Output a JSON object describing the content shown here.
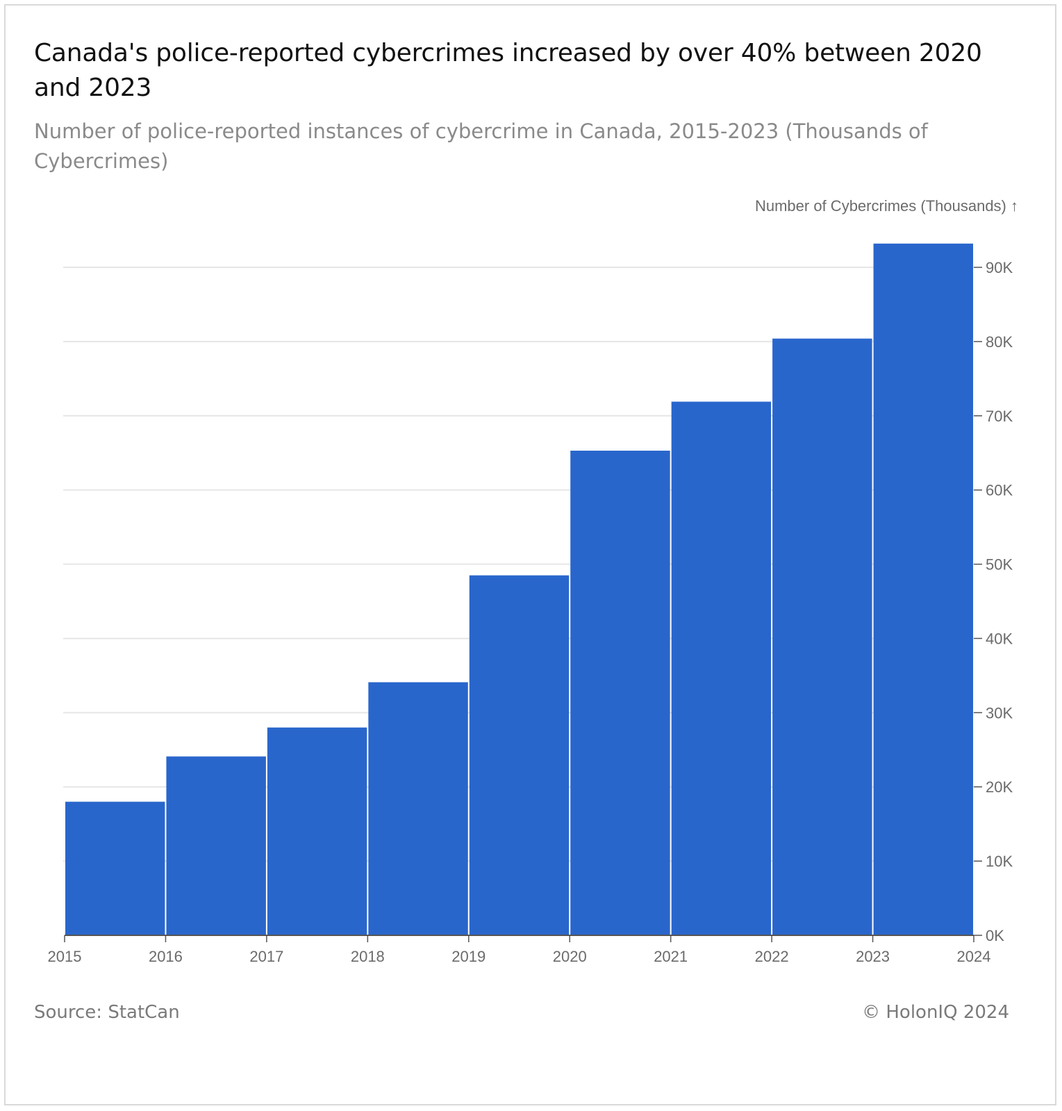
{
  "header": {
    "title": "Canada's police-reported cybercrimes increased by over 40% between 2020 and 2023",
    "subtitle": "Number of police-reported instances of cybercrime in Canada, 2015-2023 (Thousands of Cybercrimes)"
  },
  "footer": {
    "source": "Source: StatCan",
    "copyright": "© HolonIQ 2024"
  },
  "colors": {
    "bar": "#2966cc",
    "grid": "#e6e6e6",
    "axis": "#555555",
    "tick_text": "#6b6b6b"
  },
  "chart_data": {
    "type": "bar",
    "title": "Canada's police-reported cybercrimes increased by over 40% between 2020 and 2023",
    "subtitle": "Number of police-reported instances of cybercrime in Canada, 2015-2023 (Thousands of Cybercrimes)",
    "ylabel": "Number of Cybercrimes (Thousands) ↑",
    "xlabel": "",
    "y_axis_position": "right",
    "grid": true,
    "legend": "none",
    "x_ticks": [
      "2015",
      "2016",
      "2017",
      "2018",
      "2019",
      "2020",
      "2021",
      "2022",
      "2023",
      "2024"
    ],
    "y_ticks": [
      "0K",
      "10K",
      "20K",
      "30K",
      "40K",
      "50K",
      "60K",
      "70K",
      "80K",
      "90K"
    ],
    "ylim": [
      0,
      93000
    ],
    "bins": [
      {
        "start": 2015,
        "end": 2016,
        "value": 18000
      },
      {
        "start": 2016,
        "end": 2017,
        "value": 24100
      },
      {
        "start": 2017,
        "end": 2018,
        "value": 28000
      },
      {
        "start": 2018,
        "end": 2019,
        "value": 34100
      },
      {
        "start": 2019,
        "end": 2020,
        "value": 48500
      },
      {
        "start": 2020,
        "end": 2021,
        "value": 65300
      },
      {
        "start": 2021,
        "end": 2022,
        "value": 71900
      },
      {
        "start": 2022,
        "end": 2023,
        "value": 80400
      },
      {
        "start": 2023,
        "end": 2024,
        "value": 93200
      }
    ]
  }
}
